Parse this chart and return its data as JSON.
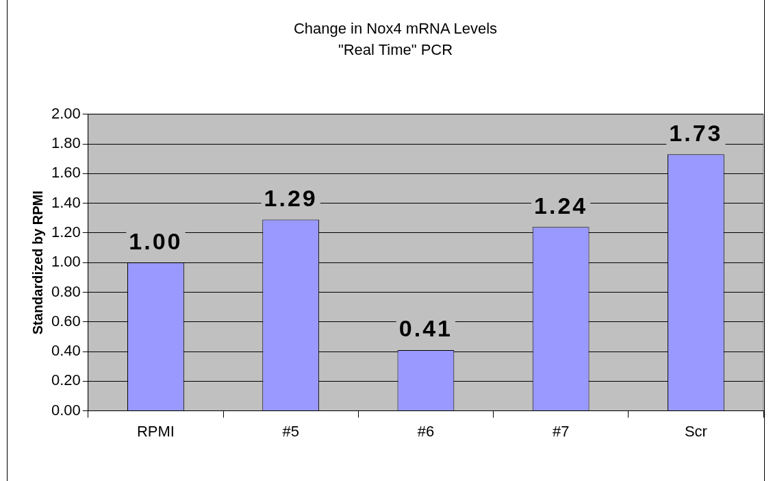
{
  "chart_data": {
    "type": "bar",
    "title": "Change in Nox4 mRNA Levels",
    "subtitle": "\"Real Time\" PCR",
    "ylabel": "Standardized by RPMI",
    "categories": [
      "RPMI",
      "#5",
      "#6",
      "#7",
      "Scr"
    ],
    "values": [
      1.0,
      1.29,
      0.41,
      1.24,
      1.73
    ],
    "value_labels": [
      "1.00",
      "1.29",
      "0.41",
      "1.24",
      "1.73"
    ],
    "color": "#9999ff",
    "ylim": [
      0,
      2
    ],
    "yticks": [
      {
        "value": 0,
        "label": "0.00"
      },
      {
        "value": 0.2,
        "label": "0.20"
      },
      {
        "value": 0.4,
        "label": "0.40"
      },
      {
        "value": 0.6,
        "label": "0.60"
      },
      {
        "value": 0.8,
        "label": "0.80"
      },
      {
        "value": 1,
        "label": "1.00"
      },
      {
        "value": 1.2,
        "label": "1.20"
      },
      {
        "value": 1.4,
        "label": "1.40"
      },
      {
        "value": 1.6,
        "label": "1.60"
      },
      {
        "value": 1.8,
        "label": "1.80"
      },
      {
        "value": 2,
        "label": "2.00"
      }
    ],
    "grid": "y"
  }
}
